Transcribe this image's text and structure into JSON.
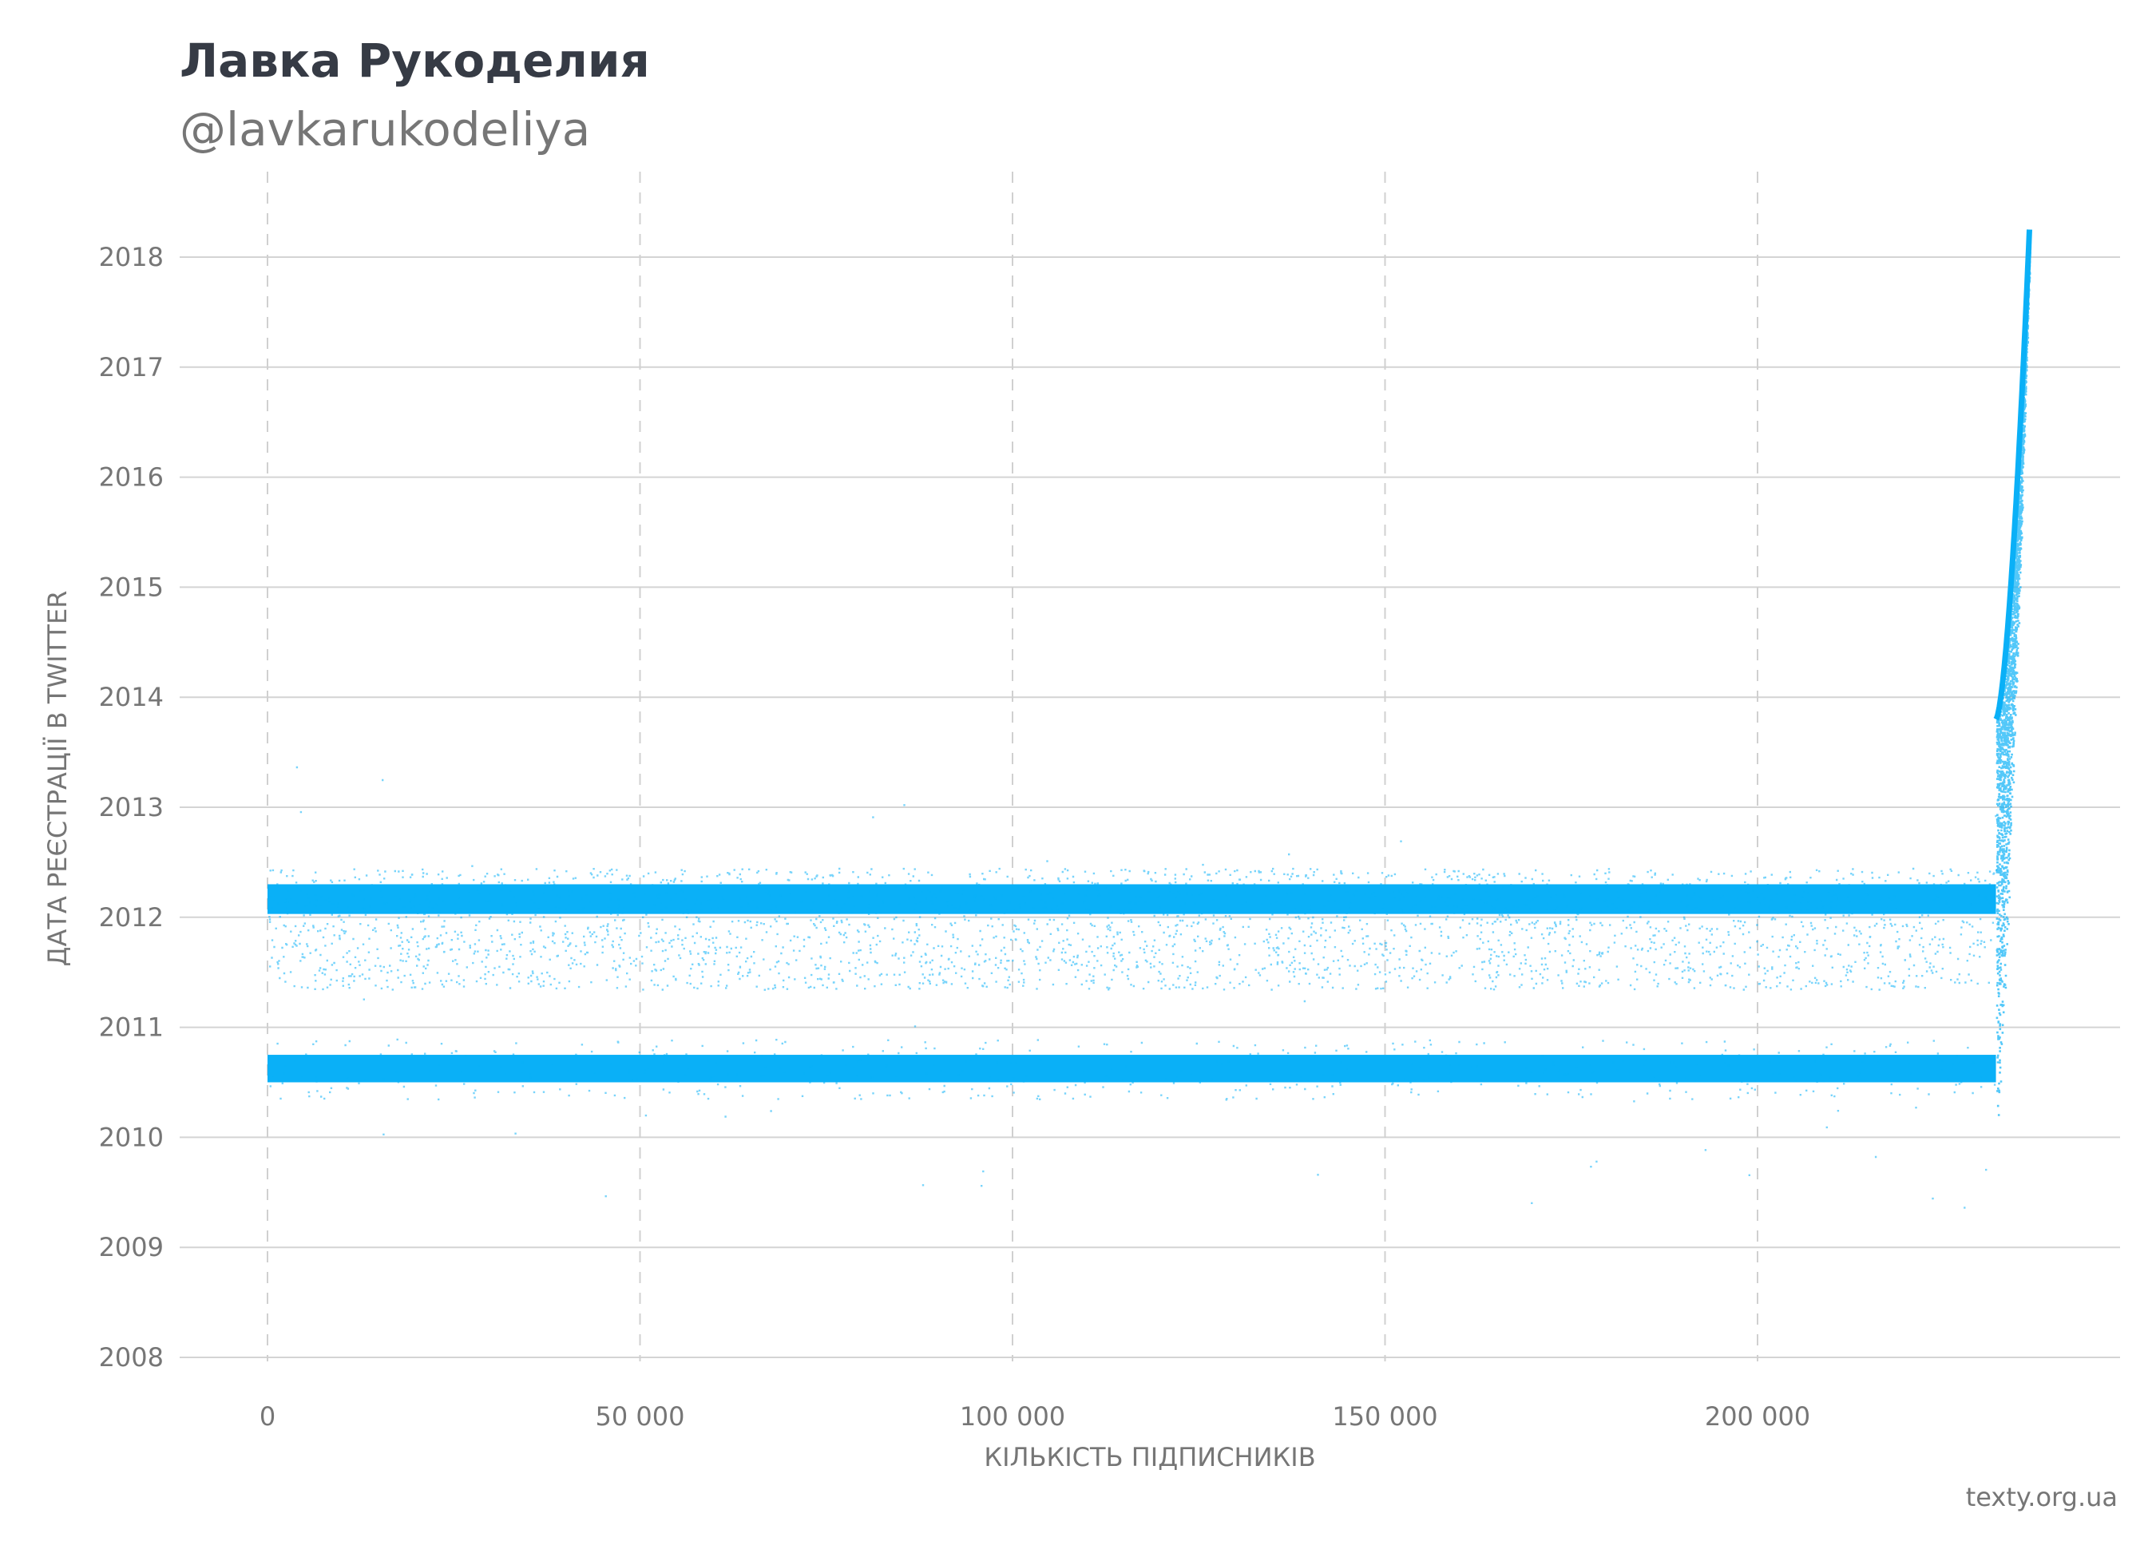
{
  "header": {
    "title": "Лавка Рукоделия",
    "subtitle": "@lavkarukodeliya"
  },
  "source": "texty.org.ua",
  "colors": {
    "points": "#0ab0f7",
    "grid_h": "#d4d4d4",
    "grid_v": "#d0d0d0",
    "text": "#767676",
    "title": "#363b45"
  },
  "chart_data": {
    "type": "scatter",
    "title": "Лавка Рукоделия",
    "subtitle": "@lavkarukodeliya",
    "xlabel": "КІЛЬКІСТЬ ПІДПИСНИКІВ",
    "ylabel": "ДАТА РЕЄСТРАЦІЇ В TWITTER",
    "xlim": [
      -12000,
      248000
    ],
    "ylim": [
      2007.85,
      2018.75
    ],
    "x_ticks": [
      0,
      50000,
      100000,
      150000,
      200000
    ],
    "x_tick_labels": [
      "0",
      "50 000",
      "100 000",
      "150 000",
      "200 000"
    ],
    "y_ticks": [
      2008,
      2009,
      2010,
      2011,
      2012,
      2013,
      2014,
      2015,
      2016,
      2017,
      2018
    ],
    "y_tick_labels": [
      "2008",
      "2009",
      "2010",
      "2011",
      "2012",
      "2013",
      "2014",
      "2015",
      "2016",
      "2017",
      "2018"
    ],
    "grid": {
      "horizontal": "solid",
      "vertical": "dashed"
    },
    "legend": "none",
    "series": [
      {
        "description_band": "dense",
        "x_range": [
          0,
          232000
        ],
        "y_range": [
          2012.03,
          2012.3
        ]
      },
      {
        "description_band": "dense",
        "x_range": [
          0,
          232000
        ],
        "y_range": [
          2010.5,
          2010.75
        ]
      },
      {
        "description_band": "sparse",
        "x_range": [
          0,
          232000
        ],
        "y_range": [
          2011.35,
          2012.45
        ]
      },
      {
        "description_band": "tail",
        "x_range": [
          232000,
          236500
        ],
        "y_start": 2013.8,
        "y_end": 2018.25
      }
    ]
  }
}
